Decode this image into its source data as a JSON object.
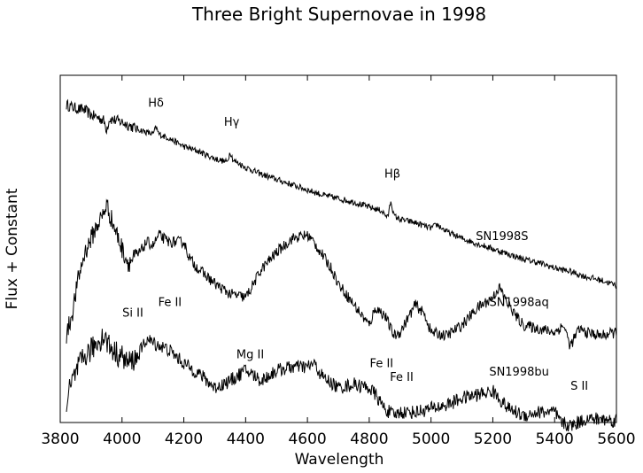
{
  "chart_data": {
    "type": "line",
    "title": "Three Bright Supernovae in 1998",
    "xlabel": "Wavelength",
    "ylabel": "Flux + Constant",
    "xlim": [
      3800,
      5600
    ],
    "ylim": [
      0,
      10
    ],
    "xticks": [
      3800,
      4000,
      4200,
      4400,
      4600,
      4800,
      5000,
      5200,
      5400,
      5600
    ],
    "grid": false,
    "series": [
      {
        "name": "SN1998S",
        "x": [
          3820,
          3850,
          3880,
          3900,
          3920,
          3940,
          3950,
          3960,
          3980,
          4000,
          4050,
          4100,
          4110,
          4120,
          4150,
          4200,
          4250,
          4300,
          4340,
          4350,
          4360,
          4380,
          4400,
          4450,
          4500,
          4550,
          4600,
          4650,
          4700,
          4750,
          4800,
          4840,
          4860,
          4870,
          4880,
          4900,
          4950,
          5000,
          5020,
          5050,
          5100,
          5150,
          5200,
          5250,
          5300,
          5350,
          5400,
          5450,
          5500,
          5550,
          5600
        ],
        "y": [
          9.15,
          9.05,
          9.0,
          8.85,
          8.8,
          8.7,
          8.45,
          8.75,
          8.7,
          8.65,
          8.45,
          8.3,
          8.5,
          8.3,
          8.2,
          7.95,
          7.8,
          7.6,
          7.5,
          7.8,
          7.55,
          7.45,
          7.35,
          7.15,
          7.0,
          6.85,
          6.7,
          6.55,
          6.45,
          6.35,
          6.2,
          6.1,
          5.9,
          6.4,
          5.95,
          5.85,
          5.75,
          5.6,
          5.7,
          5.5,
          5.3,
          5.15,
          5.0,
          4.85,
          4.7,
          4.6,
          4.45,
          4.35,
          4.2,
          4.1,
          3.95
        ]
      },
      {
        "name": "SN1998aq",
        "x": [
          3820,
          3840,
          3860,
          3880,
          3900,
          3920,
          3940,
          3950,
          3960,
          3980,
          4000,
          4020,
          4050,
          4080,
          4100,
          4120,
          4150,
          4200,
          4220,
          4250,
          4300,
          4350,
          4400,
          4420,
          4450,
          4500,
          4550,
          4600,
          4620,
          4650,
          4680,
          4700,
          4750,
          4800,
          4820,
          4850,
          4880,
          4900,
          4950,
          4980,
          5000,
          5050,
          5100,
          5150,
          5200,
          5220,
          5250,
          5280,
          5300,
          5350,
          5400,
          5430,
          5450,
          5480,
          5500,
          5550,
          5600
        ],
        "y": [
          2.5,
          3.2,
          4.2,
          4.9,
          5.3,
          5.7,
          6.0,
          6.3,
          6.0,
          5.5,
          5.0,
          4.6,
          4.8,
          5.2,
          5.1,
          5.4,
          5.2,
          5.2,
          4.7,
          4.4,
          4.0,
          3.7,
          3.6,
          3.9,
          4.4,
          4.9,
          5.3,
          5.4,
          5.2,
          4.8,
          4.4,
          4.0,
          3.4,
          2.8,
          3.3,
          3.1,
          2.5,
          2.6,
          3.4,
          3.1,
          2.6,
          2.5,
          2.8,
          3.3,
          3.6,
          3.9,
          3.4,
          3.0,
          2.8,
          2.7,
          2.6,
          2.8,
          2.2,
          2.7,
          2.6,
          2.5,
          2.6
        ]
      },
      {
        "name": "SN1998bu",
        "x": [
          3820,
          3840,
          3860,
          3880,
          3900,
          3920,
          3940,
          3960,
          3980,
          4000,
          4020,
          4050,
          4080,
          4100,
          4150,
          4200,
          4250,
          4300,
          4350,
          4400,
          4420,
          4450,
          4500,
          4550,
          4600,
          4620,
          4650,
          4700,
          4750,
          4800,
          4820,
          4850,
          4880,
          4900,
          4950,
          5000,
          5050,
          5100,
          5150,
          5200,
          5250,
          5300,
          5350,
          5400,
          5420,
          5450,
          5500,
          5550,
          5600
        ],
        "y": [
          0.6,
          1.2,
          1.6,
          1.9,
          2.1,
          2.3,
          2.5,
          2.2,
          2.0,
          1.9,
          1.7,
          1.9,
          2.4,
          2.3,
          2.1,
          1.7,
          1.4,
          1.0,
          1.2,
          1.5,
          1.4,
          1.2,
          1.5,
          1.6,
          1.6,
          1.7,
          1.3,
          1.0,
          1.1,
          1.0,
          0.8,
          0.4,
          0.2,
          0.3,
          0.3,
          0.4,
          0.5,
          0.7,
          0.8,
          0.9,
          0.4,
          0.2,
          0.3,
          0.3,
          0.0,
          -0.1,
          0.1,
          0.1,
          0.05
        ]
      }
    ],
    "annotations": [
      {
        "text": "Hδ",
        "x": 4110,
        "y": 9.1
      },
      {
        "text": "Hγ",
        "x": 4355,
        "y": 8.55
      },
      {
        "text": "Hβ",
        "x": 4875,
        "y": 7.05
      },
      {
        "text": "SN1998S",
        "x": 5230,
        "y": 5.25
      },
      {
        "text": "Si II",
        "x": 4035,
        "y": 3.05
      },
      {
        "text": "Fe II",
        "x": 4155,
        "y": 3.35
      },
      {
        "text": "Mg II",
        "x": 4415,
        "y": 1.85
      },
      {
        "text": "Fe II",
        "x": 4840,
        "y": 1.6
      },
      {
        "text": "Fe II",
        "x": 4905,
        "y": 1.2
      },
      {
        "text": "SN1998aq",
        "x": 5285,
        "y": 3.35
      },
      {
        "text": "S II",
        "x": 5480,
        "y": 0.95
      },
      {
        "text": "SN1998bu",
        "x": 5285,
        "y": 1.35
      }
    ]
  }
}
